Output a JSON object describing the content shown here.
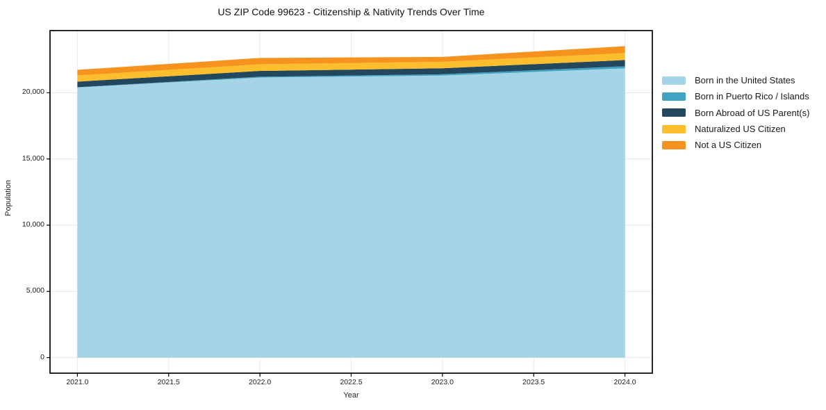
{
  "title": "US ZIP Code 99623 - Citizenship & Nativity Trends Over Time",
  "xlabel": "Year",
  "ylabel": "Population",
  "chart_data": {
    "type": "area",
    "stacked": true,
    "title": "US ZIP Code 99623 - Citizenship & Nativity Trends Over Time",
    "xlabel": "Year",
    "ylabel": "Population",
    "grid": true,
    "legend_position": "right-outside",
    "x": [
      2021,
      2022,
      2023,
      2024
    ],
    "series": [
      {
        "name": "Born in the United States",
        "color": "#A6D4E7",
        "values": [
          20400,
          21150,
          21300,
          21840
        ]
      },
      {
        "name": "Born in Puerto Rico / Islands",
        "color": "#3FA3C2",
        "values": [
          20,
          60,
          100,
          160
        ]
      },
      {
        "name": "Born Abroad of US Parent(s)",
        "color": "#23485E",
        "values": [
          420,
          440,
          450,
          470
        ]
      },
      {
        "name": "Naturalized US Citizen",
        "color": "#FCBE2D",
        "values": [
          470,
          500,
          490,
          525
        ]
      },
      {
        "name": "Not a US Citizen",
        "color": "#F6921E",
        "values": [
          420,
          480,
          370,
          525
        ]
      }
    ],
    "totals": [
      21730,
      22630,
      22710,
      23520
    ],
    "x_tick_values": [
      2021.0,
      2021.5,
      2022.0,
      2022.5,
      2023.0,
      2023.5,
      2024.0
    ],
    "x_ticks": [
      "2021.0",
      "2021.5",
      "2022.0",
      "2022.5",
      "2023.0",
      "2023.5",
      "2024.0"
    ],
    "y_tick_values": [
      0,
      5000,
      10000,
      15000,
      20000
    ],
    "y_ticks": [
      "0",
      "5,000",
      "10,000",
      "15,000",
      "20,000"
    ],
    "xlim": [
      2020.85,
      2024.15
    ],
    "ylim": [
      -1176,
      24696
    ],
    "colors": {
      "grid": "#e9e9e9",
      "spine": "#000000",
      "background": "#ffffff"
    }
  }
}
